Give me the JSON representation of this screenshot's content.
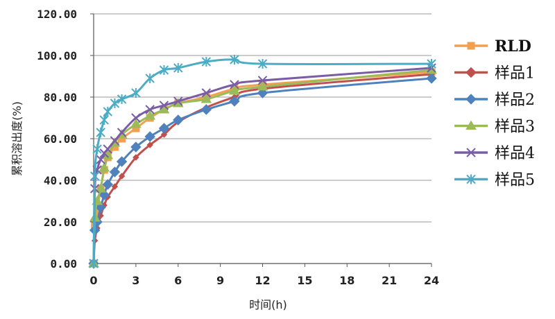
{
  "chart_data": {
    "type": "line",
    "xlabel": "时间(h)",
    "ylabel": "累积溶出度(%)",
    "xlim": [
      0,
      24
    ],
    "ylim": [
      0,
      120
    ],
    "x_ticks": [
      "0",
      "3",
      "6",
      "9",
      "12",
      "15",
      "18",
      "21",
      "24"
    ],
    "x_tick_values": [
      0,
      3,
      6,
      9,
      12,
      15,
      18,
      21,
      24
    ],
    "y_ticks": [
      "0.00",
      "20.00",
      "40.00",
      "60.00",
      "80.00",
      "100.00",
      "120.00"
    ],
    "y_tick_values": [
      0,
      20,
      40,
      60,
      80,
      100,
      120
    ],
    "grid": "horizontal",
    "legend_position": "right",
    "series": [
      {
        "name": "RLD",
        "color": "#F0A050",
        "marker": "square",
        "x": [
          0,
          0.083,
          0.25,
          0.5,
          0.75,
          1,
          1.5,
          2,
          3,
          4,
          5,
          6,
          8,
          10,
          12,
          24
        ],
        "y": [
          0,
          18,
          25,
          36,
          45,
          51,
          56,
          60,
          65,
          70,
          74,
          77,
          80,
          84,
          86,
          92
        ]
      },
      {
        "name": "样品1",
        "color": "#C0504D",
        "marker": "diamond-small",
        "x": [
          0,
          0.083,
          0.25,
          0.5,
          0.75,
          1,
          1.5,
          2,
          3,
          4,
          5,
          6,
          8,
          10,
          12,
          24
        ],
        "y": [
          0,
          11,
          17,
          23,
          28,
          32,
          37,
          42,
          51,
          57,
          62,
          68,
          75,
          80,
          84,
          91
        ]
      },
      {
        "name": "样品2",
        "color": "#4F81BD",
        "marker": "diamond",
        "x": [
          0,
          0.083,
          0.25,
          0.5,
          0.75,
          1,
          1.5,
          2,
          3,
          4,
          5,
          6,
          8,
          10,
          12,
          24
        ],
        "y": [
          0,
          16,
          20,
          27,
          33,
          38,
          44,
          49,
          56,
          61,
          65,
          69,
          74,
          78,
          82,
          89
        ]
      },
      {
        "name": "样品3",
        "color": "#9BBB59",
        "marker": "triangle",
        "x": [
          0,
          0.083,
          0.25,
          0.5,
          0.75,
          1,
          1.5,
          2,
          3,
          4,
          5,
          6,
          8,
          10,
          12,
          24
        ],
        "y": [
          0,
          22,
          30,
          36,
          46,
          52,
          58,
          62,
          67,
          71,
          74,
          77,
          79,
          83,
          85,
          93
        ]
      },
      {
        "name": "样品4",
        "color": "#7B5CA6",
        "marker": "x",
        "x": [
          0,
          0.083,
          0.25,
          0.5,
          0.75,
          1,
          1.5,
          2,
          3,
          4,
          5,
          6,
          8,
          10,
          12,
          24
        ],
        "y": [
          0,
          36,
          45,
          50,
          53,
          55,
          59,
          63,
          70,
          74,
          76,
          78,
          82,
          86,
          88,
          94
        ]
      },
      {
        "name": "样品5",
        "color": "#4BACC6",
        "marker": "asterisk",
        "x": [
          0,
          0.083,
          0.25,
          0.5,
          0.75,
          1,
          1.5,
          2,
          3,
          4,
          5,
          6,
          8,
          10,
          12,
          24
        ],
        "y": [
          0,
          42,
          55,
          63,
          69,
          73,
          77,
          79,
          82,
          89,
          93,
          94,
          97,
          98,
          96,
          96
        ]
      }
    ]
  }
}
